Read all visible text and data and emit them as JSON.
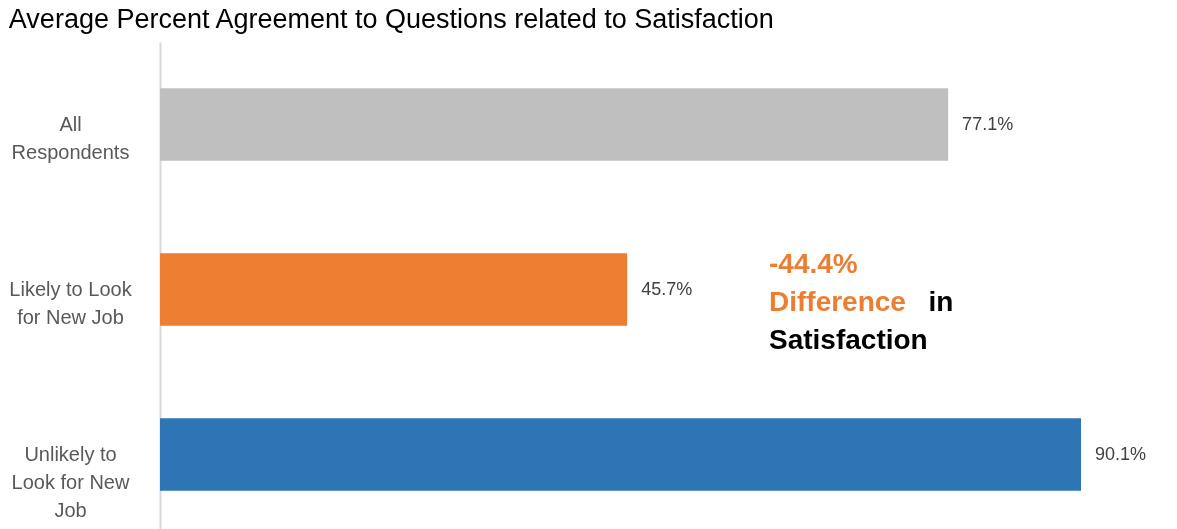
{
  "chart_data": {
    "type": "bar",
    "orientation": "horizontal",
    "title": "Average Percent Agreement to Questions related to Satisfaction",
    "categories": [
      "All Respondents",
      "Likely to Look for New Job",
      "Unlikely to Look for New Job"
    ],
    "values": [
      77.1,
      45.7,
      90.1
    ],
    "colors": [
      "#bfbfbf",
      "#ed7d31",
      "#2e75b6"
    ],
    "value_labels": [
      "77.1%",
      "45.7%",
      "90.1%"
    ],
    "annotations": [
      "-44.4% Difference in Satisfaction"
    ]
  }
}
